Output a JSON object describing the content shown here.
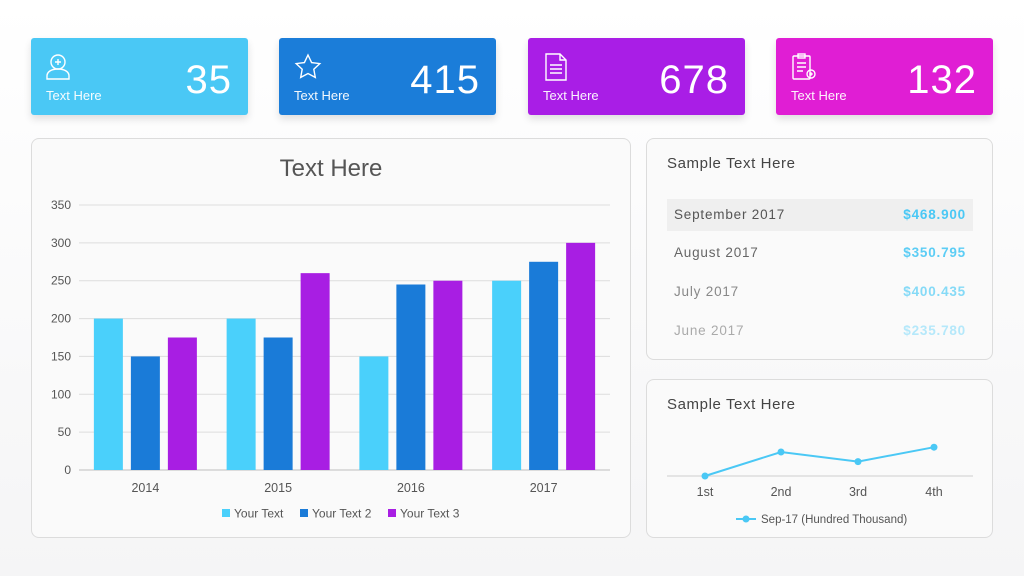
{
  "stats": [
    {
      "label": "Text Here",
      "value": "35",
      "color": "#4ac8f5",
      "icon": "user-add-icon"
    },
    {
      "label": "Text Here",
      "value": "415",
      "color": "#1b7dd9",
      "icon": "star-icon"
    },
    {
      "label": "Text Here",
      "value": "678",
      "color": "#a91ee6",
      "icon": "document-icon"
    },
    {
      "label": "Text Here",
      "value": "132",
      "color": "#e01ed4",
      "icon": "clipboard-icon"
    }
  ],
  "bar_chart": {
    "title": "Text Here",
    "chart_data": {
      "type": "bar",
      "categories": [
        "2014",
        "2015",
        "2016",
        "2017"
      ],
      "series": [
        {
          "name": "Your Text",
          "color": "#4ad0fb",
          "values": [
            200,
            200,
            150,
            250
          ]
        },
        {
          "name": "Your Text 2",
          "color": "#1a7bd8",
          "values": [
            150,
            175,
            245,
            275
          ]
        },
        {
          "name": "Your Text 3",
          "color": "#a81ee3",
          "values": [
            175,
            260,
            250,
            300
          ]
        }
      ],
      "ylim": [
        0,
        350
      ],
      "yticks": [
        "0",
        "50",
        "100",
        "150",
        "200",
        "250",
        "300",
        "350"
      ],
      "grid": true,
      "legend": "bottom"
    }
  },
  "sales_panel": {
    "title": "Sample Text Here",
    "rows": [
      {
        "month": "September 2017",
        "value": "$468.900"
      },
      {
        "month": "August 2017",
        "value": "$350.795"
      },
      {
        "month": "July 2017",
        "value": "$400.435"
      },
      {
        "month": "June 2017",
        "value": "$235.780"
      }
    ]
  },
  "line_panel": {
    "title": "Sample Text Here",
    "chart_data": {
      "type": "line",
      "categories": [
        "1st",
        "2nd",
        "3rd",
        "4th"
      ],
      "series": [
        {
          "name": "Sep-17 (Hundred Thousand)",
          "color": "#4ac8f5",
          "values": [
            0,
            2,
            1.2,
            2.4
          ]
        }
      ],
      "ylim": [
        0,
        3
      ],
      "legend": "bottom"
    }
  }
}
